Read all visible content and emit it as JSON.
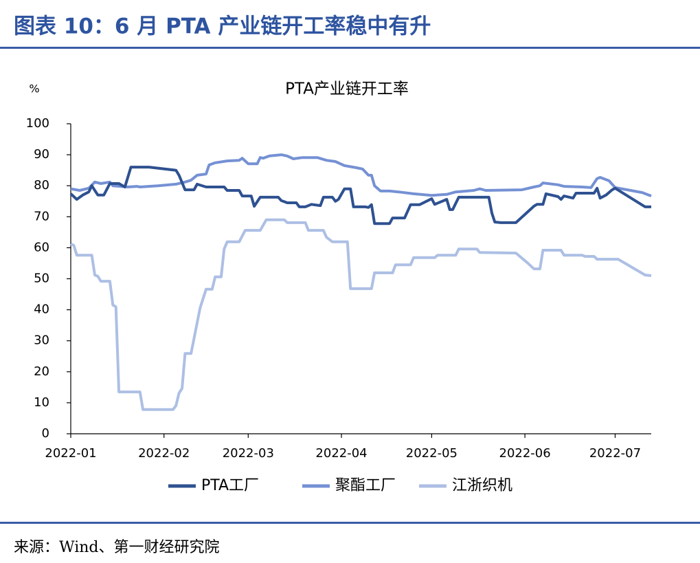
{
  "header": {
    "title": "图表 10：6 月 PTA 产业链开工率稳中有升"
  },
  "footer": {
    "source": "来源：Wind、第一财经研究院"
  },
  "chart_data": {
    "type": "line",
    "title": "PTA产业链开工率",
    "y_label": "%",
    "xlim": [
      "2022-01-01",
      "2022-07-13"
    ],
    "xticks": [
      "2022-01",
      "2022-02",
      "2022-03",
      "2022-04",
      "2022-05",
      "2022-06",
      "2022-07"
    ],
    "ylim": [
      0,
      100
    ],
    "yticks": [
      0,
      10,
      20,
      30,
      40,
      50,
      60,
      70,
      80,
      90,
      100
    ],
    "grid": false,
    "legend": "bottom",
    "series": [
      {
        "name": "PTA工厂",
        "color": "#2e5190",
        "x": [
          "2022-01-01",
          "2022-01-03",
          "2022-01-05",
          "2022-01-07",
          "2022-01-08",
          "2022-01-10",
          "2022-01-12",
          "2022-01-14",
          "2022-01-17",
          "2022-01-19",
          "2022-01-21",
          "2022-01-27",
          "2022-02-05",
          "2022-02-06",
          "2022-02-08",
          "2022-02-11",
          "2022-02-12",
          "2022-02-15",
          "2022-02-21",
          "2022-02-22",
          "2022-02-26",
          "2022-02-27",
          "2022-03-02",
          "2022-03-03",
          "2022-03-05",
          "2022-03-11",
          "2022-03-12",
          "2022-03-14",
          "2022-03-17",
          "2022-03-18",
          "2022-03-20",
          "2022-03-22",
          "2022-03-25",
          "2022-03-26",
          "2022-03-29",
          "2022-03-30",
          "2022-03-31",
          "2022-04-02",
          "2022-04-04",
          "2022-04-05",
          "2022-04-09",
          "2022-04-10",
          "2022-04-11",
          "2022-04-12",
          "2022-04-17",
          "2022-04-18",
          "2022-04-22",
          "2022-04-24",
          "2022-04-27",
          "2022-05-01",
          "2022-05-02",
          "2022-05-06",
          "2022-05-07",
          "2022-05-08",
          "2022-05-10",
          "2022-05-20",
          "2022-05-21",
          "2022-05-22",
          "2022-05-24",
          "2022-05-29",
          "2022-06-04",
          "2022-06-05",
          "2022-06-07",
          "2022-06-08",
          "2022-06-12",
          "2022-06-13",
          "2022-06-14",
          "2022-06-17",
          "2022-06-18",
          "2022-06-24",
          "2022-06-25",
          "2022-06-26",
          "2022-06-28",
          "2022-06-30",
          "2022-07-01",
          "2022-07-11",
          "2022-07-13"
        ],
        "values": [
          77.4,
          75.6,
          77,
          78,
          80,
          77,
          77,
          80.7,
          80.7,
          79.6,
          86,
          86,
          85,
          83.4,
          78.7,
          78.7,
          80.5,
          79.6,
          79.6,
          78.5,
          78.5,
          76.7,
          76.7,
          73.4,
          76.3,
          76.3,
          75.2,
          74.5,
          74.5,
          73.2,
          73.2,
          74,
          73.6,
          76.3,
          76.3,
          75,
          75.6,
          79,
          79,
          73.2,
          73.2,
          73,
          73.9,
          67.8,
          67.8,
          69.6,
          69.6,
          73.9,
          73.9,
          75.8,
          74,
          75.6,
          72.3,
          72.3,
          76.3,
          76.3,
          71.2,
          68.3,
          68.1,
          68.1,
          73.4,
          74,
          74,
          77.4,
          76.5,
          75.6,
          76.7,
          76,
          77.6,
          77.6,
          79.2,
          76,
          77,
          78.7,
          79.2,
          73.2,
          73.2
        ]
      },
      {
        "name": "聚酯工厂",
        "color": "#7591d4",
        "x": [
          "2022-01-01",
          "2022-01-04",
          "2022-01-07",
          "2022-01-09",
          "2022-01-11",
          "2022-01-14",
          "2022-01-15",
          "2022-01-20",
          "2022-01-23",
          "2022-01-24",
          "2022-01-30",
          "2022-02-05",
          "2022-02-08",
          "2022-02-10",
          "2022-02-12",
          "2022-02-15",
          "2022-02-16",
          "2022-02-18",
          "2022-02-22",
          "2022-02-26",
          "2022-02-27",
          "2022-03-01",
          "2022-03-04",
          "2022-03-05",
          "2022-03-06",
          "2022-03-08",
          "2022-03-12",
          "2022-03-14",
          "2022-03-16",
          "2022-03-19",
          "2022-03-24",
          "2022-03-27",
          "2022-03-30",
          "2022-04-02",
          "2022-04-06",
          "2022-04-08",
          "2022-04-10",
          "2022-04-11",
          "2022-04-12",
          "2022-04-14",
          "2022-04-17",
          "2022-04-20",
          "2022-04-25",
          "2022-05-01",
          "2022-05-06",
          "2022-05-09",
          "2022-05-15",
          "2022-05-17",
          "2022-05-19",
          "2022-05-31",
          "2022-06-04",
          "2022-06-06",
          "2022-06-07",
          "2022-06-12",
          "2022-06-14",
          "2022-06-20",
          "2022-06-23",
          "2022-06-25",
          "2022-06-26",
          "2022-06-29",
          "2022-07-01",
          "2022-07-10",
          "2022-07-13"
        ],
        "values": [
          79,
          78.5,
          79.2,
          81.2,
          80.7,
          81.2,
          80,
          79.6,
          79.8,
          79.6,
          80,
          80.5,
          81.2,
          81.8,
          83.4,
          83.8,
          86.7,
          87.4,
          88,
          88.2,
          88.9,
          87.1,
          87.1,
          89.1,
          88.9,
          89.6,
          90,
          89.6,
          88.7,
          89.1,
          89.1,
          88.2,
          87.8,
          86.5,
          85.8,
          85.4,
          83.4,
          83.4,
          80,
          78.3,
          78.3,
          78,
          77.4,
          76.9,
          77.2,
          78,
          78.5,
          79,
          78.5,
          78.7,
          79.6,
          80,
          80.9,
          80.3,
          79.8,
          79.6,
          79.4,
          82.3,
          82.7,
          81.6,
          79.4,
          77.8,
          76.7
        ]
      },
      {
        "name": "江浙织机",
        "color": "#adbfe4",
        "x": [
          "2022-01-01",
          "2022-01-02",
          "2022-01-03",
          "2022-01-08",
          "2022-01-09",
          "2022-01-10",
          "2022-01-11",
          "2022-01-14",
          "2022-01-15",
          "2022-01-16",
          "2022-01-17",
          "2022-01-24",
          "2022-01-25",
          "2022-02-04",
          "2022-02-05",
          "2022-02-06",
          "2022-02-07",
          "2022-02-08",
          "2022-02-10",
          "2022-02-12",
          "2022-02-13",
          "2022-02-15",
          "2022-02-17",
          "2022-02-18",
          "2022-02-20",
          "2022-02-21",
          "2022-02-22",
          "2022-02-26",
          "2022-02-28",
          "2022-03-05",
          "2022-03-07",
          "2022-03-13",
          "2022-03-14",
          "2022-03-20",
          "2022-03-21",
          "2022-03-26",
          "2022-03-27",
          "2022-03-29",
          "2022-04-03",
          "2022-04-04",
          "2022-04-11",
          "2022-04-12",
          "2022-04-18",
          "2022-04-19",
          "2022-04-24",
          "2022-04-25",
          "2022-05-02",
          "2022-05-03",
          "2022-05-09",
          "2022-05-10",
          "2022-05-16",
          "2022-05-17",
          "2022-05-29",
          "2022-06-02",
          "2022-06-04",
          "2022-06-06",
          "2022-06-07",
          "2022-06-13",
          "2022-06-14",
          "2022-06-20",
          "2022-06-21",
          "2022-06-24",
          "2022-06-25",
          "2022-07-02",
          "2022-07-11",
          "2022-07-13"
        ],
        "values": [
          61.2,
          60.8,
          57.6,
          57.6,
          51.2,
          50.8,
          49.2,
          49.2,
          41.5,
          41,
          13.5,
          13.5,
          7.8,
          7.8,
          9.1,
          13.1,
          14.6,
          25.9,
          25.9,
          35.7,
          40.6,
          46.6,
          46.6,
          50.6,
          50.6,
          59.6,
          61.9,
          61.9,
          65.6,
          65.6,
          69,
          69,
          68.1,
          68.1,
          65.6,
          65.6,
          63.4,
          61.9,
          61.9,
          46.8,
          46.8,
          51.9,
          51.9,
          54.5,
          54.5,
          56.8,
          56.8,
          57.6,
          57.6,
          59.6,
          59.6,
          58.5,
          58.3,
          55,
          53.2,
          53.2,
          59.2,
          59.2,
          57.6,
          57.6,
          57.2,
          57.2,
          56.3,
          56.3,
          51.2,
          51
        ]
      }
    ]
  }
}
